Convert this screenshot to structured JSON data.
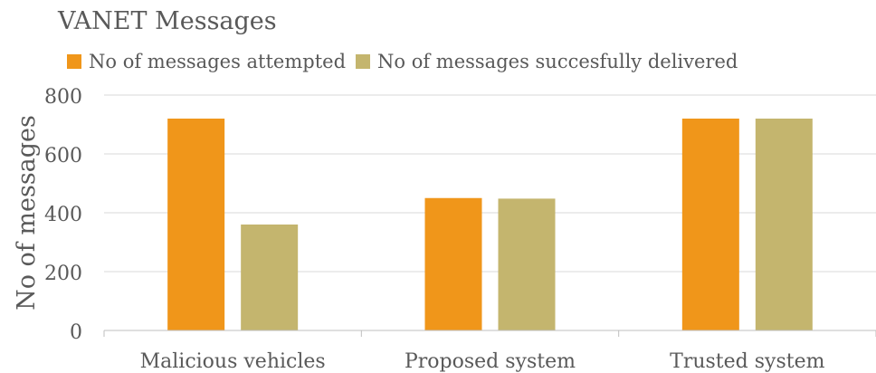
{
  "chart_data": {
    "type": "bar",
    "title": "VANET Messages",
    "xlabel": "",
    "ylabel": "No of messages",
    "categories": [
      "Malicious vehicles",
      "Proposed system",
      "Trusted system"
    ],
    "series": [
      {
        "name": "No of messages attempted",
        "values": [
          720,
          450,
          720
        ],
        "color": "#F0961A"
      },
      {
        "name": "No of messages succesfully delivered",
        "values": [
          360,
          448,
          720
        ],
        "color": "#C4B56E"
      }
    ],
    "ylim": [
      0,
      800
    ],
    "yticks": [
      "0",
      "200",
      "400",
      "600",
      "800"
    ],
    "grid": true,
    "legend_position": "top-left"
  }
}
